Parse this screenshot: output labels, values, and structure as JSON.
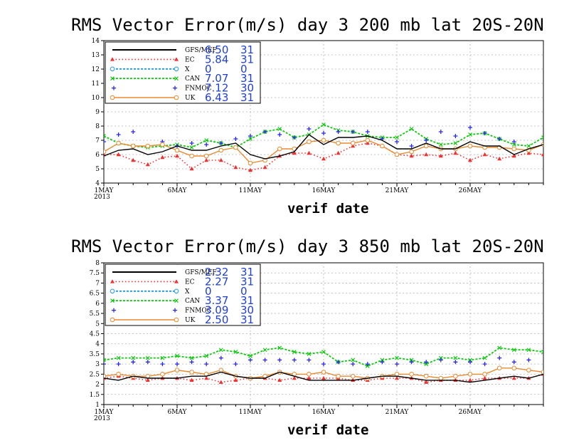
{
  "colors": {
    "GFS": "#000000",
    "EC": "#f03030",
    "X": "#1e96e6",
    "CAN": "#11c811",
    "FNMOC": "#2828e6",
    "UK": "#e88a30",
    "grid": "#b4b4b4",
    "stats": "#1f3fd8"
  },
  "chart_data": [
    {
      "type": "line",
      "title": "RMS Vector Error(m/s) day 3  200 mb   lat 20S-20N",
      "xlabel": "verif date",
      "x_start_label": "1MAY",
      "x_year_label": "2013",
      "x_tick_labels": [
        "1MAY",
        "6MAY",
        "11MAY",
        "16MAY",
        "21MAY",
        "26MAY"
      ],
      "x_days": [
        1,
        2,
        3,
        4,
        5,
        6,
        7,
        8,
        9,
        10,
        11,
        12,
        13,
        14,
        15,
        16,
        17,
        18,
        19,
        20,
        21,
        22,
        23,
        24,
        25,
        26,
        27,
        28,
        29,
        30,
        31
      ],
      "xlim": [
        1,
        31
      ],
      "ylim": [
        4,
        14
      ],
      "y_ticks": [
        4,
        5,
        6,
        7,
        8,
        9,
        10,
        11,
        12,
        13,
        14
      ],
      "grid": true,
      "legend_position": "top-left",
      "series": [
        {
          "name": "GFS/MEF",
          "style": "line",
          "color": "GFS",
          "stats": [
            "6.50",
            "31"
          ],
          "values": [
            5.9,
            6.3,
            6.4,
            6.0,
            6.2,
            6.6,
            6.3,
            6.3,
            6.6,
            6.8,
            6.0,
            5.7,
            5.9,
            6.2,
            7.4,
            6.7,
            7.2,
            7.2,
            7.3,
            7.0,
            6.4,
            6.4,
            6.8,
            6.4,
            6.4,
            6.9,
            6.6,
            6.6,
            6.0,
            6.4,
            6.7
          ]
        },
        {
          "name": "EC",
          "style": "dotted",
          "color": "EC",
          "marker": "triangle",
          "stats": [
            "5.84",
            "31"
          ],
          "values": [
            6.0,
            6.0,
            5.6,
            5.3,
            5.8,
            5.9,
            5.0,
            5.6,
            5.6,
            5.1,
            4.9,
            5.1,
            5.9,
            6.1,
            6.1,
            5.7,
            6.1,
            6.6,
            6.8,
            6.6,
            6.0,
            5.9,
            6.0,
            5.9,
            6.1,
            5.6,
            6.0,
            5.7,
            5.9,
            6.1,
            6.0
          ]
        },
        {
          "name": "X",
          "style": "dashed",
          "color": "X",
          "marker": "circle",
          "stats": [
            "0",
            "0"
          ],
          "values": []
        },
        {
          "name": "CAN",
          "style": "dashed",
          "color": "CAN",
          "marker": "x",
          "stats": [
            "7.07",
            "31"
          ],
          "values": [
            7.3,
            6.8,
            6.6,
            6.5,
            6.6,
            6.7,
            6.5,
            7.0,
            6.8,
            6.5,
            7.1,
            7.6,
            7.8,
            7.2,
            7.4,
            8.1,
            7.7,
            7.6,
            7.3,
            7.2,
            7.2,
            7.8,
            7.1,
            6.7,
            6.8,
            7.4,
            7.5,
            7.1,
            6.7,
            6.6,
            7.2
          ]
        },
        {
          "name": "FNMOC",
          "style": "plus",
          "color": "FNMOC",
          "marker": "plus",
          "stats": [
            "7.12",
            "30"
          ],
          "values": [
            6.9,
            7.4,
            7.6,
            6.6,
            6.9,
            6.6,
            6.8,
            6.7,
            6.8,
            7.1,
            7.3,
            7.6,
            7.4,
            7.2,
            7.8,
            7.5,
            7.6,
            7.6,
            7.6,
            7.1,
            6.9,
            6.6,
            7.0,
            7.6,
            7.3,
            7.9,
            7.5,
            7.1,
            6.9,
            null,
            6.7
          ]
        },
        {
          "name": "UK",
          "style": "line",
          "color": "UK",
          "marker": "circle",
          "stats": [
            "6.43",
            "31"
          ],
          "values": [
            6.2,
            6.8,
            6.6,
            6.6,
            6.7,
            6.3,
            5.9,
            5.9,
            6.3,
            6.5,
            5.4,
            5.6,
            6.4,
            6.4,
            6.9,
            7.0,
            6.8,
            6.8,
            7.0,
            6.6,
            6.0,
            6.2,
            6.6,
            6.4,
            6.4,
            6.6,
            6.5,
            6.5,
            6.4,
            6.3,
            6.7
          ]
        }
      ]
    },
    {
      "type": "line",
      "title": "RMS Vector Error(m/s) day 3  850 mb   lat 20S-20N",
      "xlabel": "verif date",
      "x_start_label": "1MAY",
      "x_year_label": "2013",
      "x_tick_labels": [
        "1MAY",
        "6MAY",
        "11MAY",
        "16MAY",
        "21MAY",
        "26MAY"
      ],
      "x_days": [
        1,
        2,
        3,
        4,
        5,
        6,
        7,
        8,
        9,
        10,
        11,
        12,
        13,
        14,
        15,
        16,
        17,
        18,
        19,
        20,
        21,
        22,
        23,
        24,
        25,
        26,
        27,
        28,
        29,
        30,
        31
      ],
      "xlim": [
        1,
        31
      ],
      "ylim": [
        1,
        8
      ],
      "y_ticks": [
        1,
        1.5,
        2,
        2.5,
        3,
        3.5,
        4,
        4.5,
        5,
        5.5,
        6,
        6.5,
        7,
        7.5,
        8
      ],
      "grid": true,
      "legend_position": "top-left",
      "series": [
        {
          "name": "GFS/MEF",
          "style": "line",
          "color": "GFS",
          "stats": [
            "2.32",
            "31"
          ],
          "values": [
            2.3,
            2.2,
            2.4,
            2.3,
            2.3,
            2.3,
            2.4,
            2.4,
            2.6,
            2.4,
            2.3,
            2.3,
            2.6,
            2.4,
            2.2,
            2.2,
            2.2,
            2.2,
            2.3,
            2.4,
            2.4,
            2.3,
            2.2,
            2.2,
            2.2,
            2.1,
            2.2,
            2.3,
            2.4,
            2.3,
            2.5
          ]
        },
        {
          "name": "EC",
          "style": "dotted",
          "color": "EC",
          "marker": "triangle",
          "stats": [
            "2.27",
            "31"
          ],
          "values": [
            2.3,
            2.4,
            2.3,
            2.2,
            2.3,
            2.3,
            2.2,
            2.3,
            2.1,
            2.2,
            2.3,
            2.3,
            2.2,
            2.3,
            2.3,
            2.3,
            2.3,
            2.2,
            2.2,
            2.3,
            2.3,
            2.3,
            2.1,
            2.2,
            2.2,
            2.2,
            2.3,
            2.3,
            2.3,
            2.3,
            2.5
          ]
        },
        {
          "name": "X",
          "style": "dashed",
          "color": "X",
          "marker": "circle",
          "stats": [
            "0",
            "0"
          ],
          "values": []
        },
        {
          "name": "CAN",
          "style": "dashed",
          "color": "CAN",
          "marker": "x",
          "stats": [
            "3.37",
            "31"
          ],
          "values": [
            3.2,
            3.3,
            3.3,
            3.3,
            3.3,
            3.4,
            3.3,
            3.4,
            3.7,
            3.6,
            3.4,
            3.7,
            3.8,
            3.6,
            3.5,
            3.6,
            3.1,
            3.2,
            2.9,
            3.2,
            3.3,
            3.2,
            3.0,
            3.3,
            3.3,
            3.2,
            3.3,
            3.8,
            3.7,
            3.7,
            3.6
          ]
        },
        {
          "name": "FNMOC",
          "style": "plus",
          "color": "FNMOC",
          "marker": "plus",
          "stats": [
            "3.09",
            "30"
          ],
          "values": [
            3.0,
            3.0,
            3.1,
            3.1,
            3.0,
            3.0,
            3.1,
            3.0,
            3.3,
            3.0,
            3.2,
            3.2,
            3.2,
            3.2,
            3.2,
            3.0,
            3.1,
            3.0,
            3.0,
            3.1,
            3.0,
            3.1,
            3.1,
            3.2,
            3.1,
            3.1,
            3.0,
            3.3,
            3.1,
            3.2,
            null
          ]
        },
        {
          "name": "UK",
          "style": "line",
          "color": "UK",
          "marker": "circle",
          "stats": [
            "2.50",
            "31"
          ],
          "values": [
            2.4,
            2.5,
            2.4,
            2.4,
            2.5,
            2.7,
            2.6,
            2.5,
            2.7,
            2.4,
            2.3,
            2.4,
            2.6,
            2.5,
            2.5,
            2.6,
            2.4,
            2.4,
            2.3,
            2.4,
            2.5,
            2.5,
            2.4,
            2.3,
            2.4,
            2.5,
            2.5,
            2.8,
            2.8,
            2.7,
            2.6
          ]
        }
      ]
    }
  ]
}
